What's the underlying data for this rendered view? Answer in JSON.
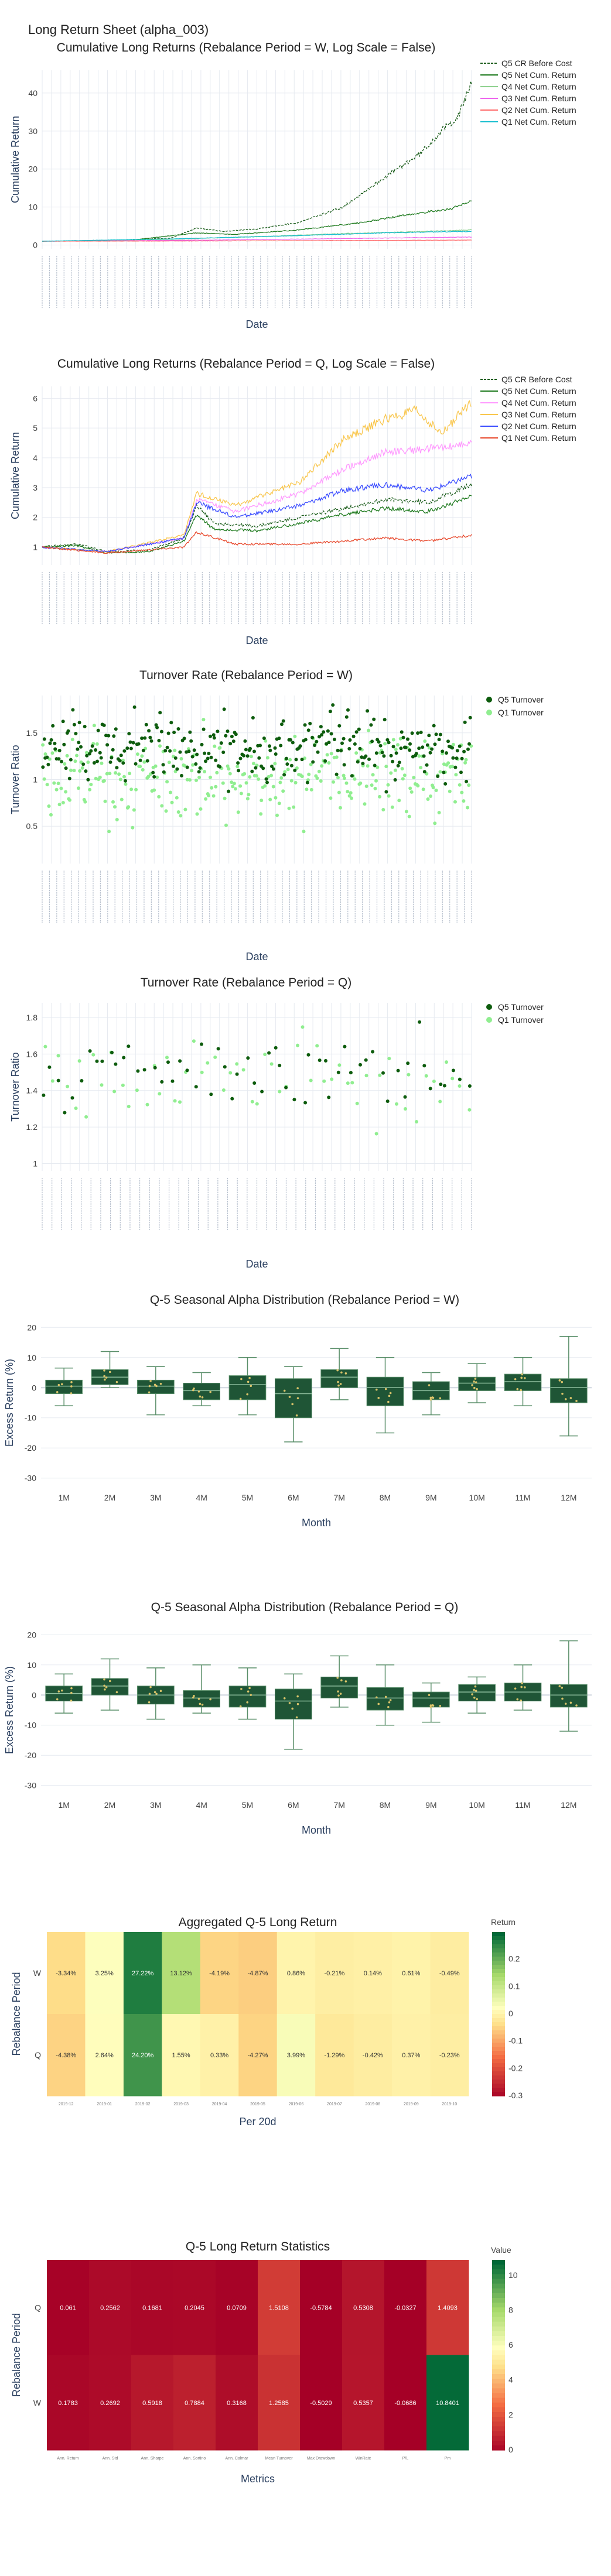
{
  "page": {
    "title": "Long Return Sheet (alpha_003)"
  },
  "chart_data": [
    {
      "id": "cum_w",
      "type": "line",
      "title": "Cumulative Long Returns (Rebalance Period = W, Log Scale = False)",
      "xlabel": "Date",
      "ylabel": "Cumulative Return",
      "ylim": [
        -1,
        46
      ],
      "yticks": [
        0,
        10,
        20,
        30,
        40
      ],
      "x_range": [
        "2016-08",
        "2023-03"
      ],
      "legend": "top-right",
      "series": [
        {
          "name": "Q5 CR Before Cost",
          "color": "#1a5c1a",
          "dash": true,
          "points": [
            [
              0,
              1
            ],
            [
              0.1,
              1.1
            ],
            [
              0.2,
              1.4
            ],
            [
              0.3,
              1.8
            ],
            [
              0.36,
              4.5
            ],
            [
              0.42,
              3.6
            ],
            [
              0.5,
              4.2
            ],
            [
              0.6,
              6
            ],
            [
              0.7,
              10
            ],
            [
              0.8,
              18
            ],
            [
              0.88,
              24
            ],
            [
              0.93,
              30
            ],
            [
              0.97,
              34
            ],
            [
              1,
              43
            ]
          ]
        },
        {
          "name": "Q5 Net Cum. Return",
          "color": "#1e7a1e",
          "points": [
            [
              0,
              1
            ],
            [
              0.2,
              1.2
            ],
            [
              0.36,
              3.2
            ],
            [
              0.45,
              2.8
            ],
            [
              0.6,
              4
            ],
            [
              0.75,
              6
            ],
            [
              0.85,
              8
            ],
            [
              0.95,
              9.5
            ],
            [
              1,
              11.5
            ]
          ]
        },
        {
          "name": "Q4 Net Cum. Return",
          "color": "#8fd18f",
          "points": [
            [
              0,
              1
            ],
            [
              0.3,
              1.5
            ],
            [
              0.5,
              2.2
            ],
            [
              0.7,
              3
            ],
            [
              0.9,
              3.6
            ],
            [
              1,
              4
            ]
          ]
        },
        {
          "name": "Q3 Net Cum. Return",
          "color": "#ee66ee",
          "points": [
            [
              0,
              1
            ],
            [
              0.4,
              1.3
            ],
            [
              0.7,
              1.7
            ],
            [
              1,
              2.1
            ]
          ]
        },
        {
          "name": "Q2 Net Cum. Return",
          "color": "#ff6b6b",
          "points": [
            [
              0,
              1
            ],
            [
              0.5,
              1.1
            ],
            [
              1,
              1.3
            ]
          ]
        },
        {
          "name": "Q1 Net Cum. Return",
          "color": "#17becf",
          "points": [
            [
              0,
              1
            ],
            [
              0.3,
              1.6
            ],
            [
              0.6,
              2.5
            ],
            [
              0.8,
              3.2
            ],
            [
              1,
              3.6
            ]
          ]
        }
      ]
    },
    {
      "id": "cum_q",
      "type": "line",
      "title": "Cumulative Long Returns (Rebalance Period = Q, Log Scale = False)",
      "xlabel": "Date",
      "ylabel": "Cumulative Return",
      "ylim": [
        0.4,
        6.4
      ],
      "yticks": [
        1,
        2,
        3,
        4,
        5,
        6
      ],
      "x_range": [
        "2016-08",
        "2023-03"
      ],
      "legend": "top-right",
      "series": [
        {
          "name": "Q5 CR Before Cost",
          "color": "#1a5c1a",
          "dash": true,
          "points": [
            [
              0,
              1
            ],
            [
              0.08,
              1.1
            ],
            [
              0.15,
              0.85
            ],
            [
              0.25,
              0.9
            ],
            [
              0.33,
              1.3
            ],
            [
              0.36,
              2.4
            ],
            [
              0.4,
              1.8
            ],
            [
              0.5,
              1.7
            ],
            [
              0.6,
              2
            ],
            [
              0.7,
              2.3
            ],
            [
              0.8,
              2.6
            ],
            [
              0.9,
              2.5
            ],
            [
              1,
              3.1
            ]
          ]
        },
        {
          "name": "Q5 Net Cum. Return",
          "color": "#1e7a1e",
          "points": [
            [
              0,
              1
            ],
            [
              0.08,
              1.05
            ],
            [
              0.15,
              0.8
            ],
            [
              0.25,
              0.85
            ],
            [
              0.33,
              1.2
            ],
            [
              0.36,
              2.1
            ],
            [
              0.4,
              1.6
            ],
            [
              0.5,
              1.55
            ],
            [
              0.6,
              1.8
            ],
            [
              0.7,
              2.1
            ],
            [
              0.8,
              2.3
            ],
            [
              0.9,
              2.2
            ],
            [
              1,
              2.7
            ]
          ]
        },
        {
          "name": "Q4 Net Cum. Return",
          "color": "#ff99ff",
          "points": [
            [
              0,
              1
            ],
            [
              0.15,
              0.85
            ],
            [
              0.33,
              1.3
            ],
            [
              0.36,
              2.6
            ],
            [
              0.45,
              2.2
            ],
            [
              0.6,
              2.8
            ],
            [
              0.7,
              3.6
            ],
            [
              0.8,
              4.2
            ],
            [
              0.9,
              4.3
            ],
            [
              1,
              4.5
            ]
          ]
        },
        {
          "name": "Q3 Net Cum. Return",
          "color": "#f9c74f",
          "points": [
            [
              0,
              1
            ],
            [
              0.15,
              0.85
            ],
            [
              0.33,
              1.4
            ],
            [
              0.36,
              2.8
            ],
            [
              0.45,
              2.4
            ],
            [
              0.6,
              3.2
            ],
            [
              0.7,
              4.6
            ],
            [
              0.8,
              5.3
            ],
            [
              0.87,
              5.6
            ],
            [
              0.93,
              4.8
            ],
            [
              1,
              5.9
            ]
          ]
        },
        {
          "name": "Q2 Net Cum. Return",
          "color": "#3a4cff",
          "points": [
            [
              0,
              1
            ],
            [
              0.15,
              0.85
            ],
            [
              0.33,
              1.3
            ],
            [
              0.36,
              2.5
            ],
            [
              0.45,
              2
            ],
            [
              0.6,
              2.4
            ],
            [
              0.7,
              2.9
            ],
            [
              0.8,
              3.1
            ],
            [
              0.9,
              2.9
            ],
            [
              1,
              3.4
            ]
          ]
        },
        {
          "name": "Q1 Net Cum. Return",
          "color": "#e84a2e",
          "points": [
            [
              0,
              1
            ],
            [
              0.15,
              0.8
            ],
            [
              0.33,
              1
            ],
            [
              0.36,
              1.5
            ],
            [
              0.45,
              1.1
            ],
            [
              0.6,
              1.1
            ],
            [
              0.7,
              1.2
            ],
            [
              0.8,
              1.3
            ],
            [
              0.9,
              1.2
            ],
            [
              1,
              1.4
            ]
          ]
        }
      ]
    },
    {
      "id": "turn_w",
      "type": "scatter",
      "title": "Turnover Rate (Rebalance Period = W)",
      "xlabel": "Date",
      "ylabel": "Turnover Ratio",
      "ylim": [
        0.1,
        1.9
      ],
      "yticks": [
        0.5,
        1,
        1.5
      ],
      "legend": "top-right",
      "series": [
        {
          "name": "Q5 Turnover",
          "color": "#0d5c0d",
          "count": 300,
          "center": 1.35,
          "spread": 0.28
        },
        {
          "name": "Q1 Turnover",
          "color": "#90ee90",
          "count": 300,
          "center": 1.0,
          "spread": 0.35
        }
      ]
    },
    {
      "id": "turn_q",
      "type": "scatter",
      "title": "Turnover Rate (Rebalance Period = Q)",
      "xlabel": "Date",
      "ylabel": "Turnover Ratio",
      "ylim": [
        0.96,
        1.88
      ],
      "yticks": [
        1,
        1.2,
        1.4,
        1.6,
        1.8
      ],
      "legend": "top-right",
      "series": [
        {
          "name": "Q5 Turnover",
          "color": "#0d5c0d",
          "count": 60,
          "center": 1.5,
          "spread": 0.15
        },
        {
          "name": "Q1 Turnover",
          "color": "#90ee90",
          "count": 60,
          "center": 1.45,
          "spread": 0.18
        }
      ]
    },
    {
      "id": "season_w",
      "type": "box",
      "title": "Q-5 Seasonal Alpha Distribution (Rebalance Period = W)",
      "xlabel": "Month",
      "ylabel": "Excess Return (%)",
      "ylim": [
        -32,
        22
      ],
      "yticks": [
        -30,
        -20,
        -10,
        0,
        10,
        20
      ],
      "categories": [
        "1M",
        "2M",
        "3M",
        "4M",
        "5M",
        "6M",
        "7M",
        "8M",
        "9M",
        "10M",
        "11M",
        "12M"
      ],
      "boxes": [
        {
          "min": -6,
          "q1": -2,
          "med": 0.5,
          "q3": 2.5,
          "max": 6.5
        },
        {
          "min": 0,
          "q1": 1,
          "med": 3.5,
          "q3": 6,
          "max": 12
        },
        {
          "min": -9,
          "q1": -2,
          "med": 0.5,
          "q3": 2.5,
          "max": 7
        },
        {
          "min": -6,
          "q1": -4,
          "med": -1,
          "q3": 1.5,
          "max": 5
        },
        {
          "min": -9,
          "q1": -4,
          "med": 1,
          "q3": 4,
          "max": 10
        },
        {
          "min": -18,
          "q1": -10,
          "med": -2,
          "q3": 3,
          "max": 7
        },
        {
          "min": -4,
          "q1": 0,
          "med": 3.5,
          "q3": 6,
          "max": 13
        },
        {
          "min": -15,
          "q1": -6,
          "med": 0,
          "q3": 3.5,
          "max": 10
        },
        {
          "min": -9,
          "q1": -4,
          "med": -1,
          "q3": 2,
          "max": 5
        },
        {
          "min": -5,
          "q1": -1,
          "med": 1.5,
          "q3": 3.5,
          "max": 8
        },
        {
          "min": -6,
          "q1": -1,
          "med": 2,
          "q3": 4.5,
          "max": 10
        },
        {
          "min": -16,
          "q1": -5,
          "med": 0,
          "q3": 3,
          "max": 17
        }
      ]
    },
    {
      "id": "season_q",
      "type": "box",
      "title": "Q-5 Seasonal Alpha Distribution (Rebalance Period = Q)",
      "xlabel": "Month",
      "ylabel": "Excess Return (%)",
      "ylim": [
        -32,
        22
      ],
      "yticks": [
        -30,
        -20,
        -10,
        0,
        10,
        20
      ],
      "categories": [
        "1M",
        "2M",
        "3M",
        "4M",
        "5M",
        "6M",
        "7M",
        "8M",
        "9M",
        "10M",
        "11M",
        "12M"
      ],
      "boxes": [
        {
          "min": -6,
          "q1": -2,
          "med": 0.5,
          "q3": 3,
          "max": 7
        },
        {
          "min": -5,
          "q1": 0,
          "med": 3,
          "q3": 5.5,
          "max": 12
        },
        {
          "min": -8,
          "q1": -3,
          "med": 0,
          "q3": 3,
          "max": 9
        },
        {
          "min": -6,
          "q1": -4,
          "med": -1,
          "q3": 1.5,
          "max": 10
        },
        {
          "min": -8,
          "q1": -4,
          "med": 0,
          "q3": 3,
          "max": 9
        },
        {
          "min": -18,
          "q1": -8,
          "med": -2,
          "q3": 2,
          "max": 7
        },
        {
          "min": -4,
          "q1": -1,
          "med": 3,
          "q3": 6,
          "max": 13
        },
        {
          "min": -10,
          "q1": -5,
          "med": -1,
          "q3": 2.5,
          "max": 10
        },
        {
          "min": -9,
          "q1": -4,
          "med": -1,
          "q3": 1,
          "max": 4
        },
        {
          "min": -6,
          "q1": -2,
          "med": 1,
          "q3": 3.5,
          "max": 6
        },
        {
          "min": -5,
          "q1": -2,
          "med": 1,
          "q3": 4,
          "max": 10
        },
        {
          "min": -12,
          "q1": -4,
          "med": 0,
          "q3": 3.5,
          "max": 18
        }
      ]
    },
    {
      "id": "agg_heat",
      "type": "heatmap",
      "title": "Aggregated Q-5 Long Return",
      "xlabel": "Per 20d",
      "ylabel": "Rebalance Period",
      "colorbar_title": "Return",
      "zmin": -0.3,
      "zmax": 0.3,
      "colorbar_ticks": [
        0.2,
        0.1,
        0,
        -0.1,
        -0.2,
        -0.3
      ],
      "rows": [
        "W",
        "Q"
      ],
      "cols": [
        "2019-12",
        "2019-01",
        "2019-02",
        "2019-03",
        "2019-04",
        "2019-05",
        "2019-06",
        "2019-07",
        "2019-08",
        "2019-09",
        "2019-10"
      ],
      "values": [
        [
          -0.0334,
          0.0325,
          0.2722,
          0.1312,
          -0.0419,
          -0.0487,
          0.0086,
          -0.0021,
          0.0014,
          0.0061,
          -0.0049
        ],
        [
          -0.0438,
          0.0264,
          0.242,
          0.0155,
          0.0033,
          -0.0427,
          0.0399,
          -0.0129,
          -0.0042,
          0.0037,
          -0.0023
        ]
      ],
      "labels": [
        [
          "-3.34%",
          "3.25%",
          "27.22%",
          "13.12%",
          "-4.19%",
          "-4.87%",
          "0.86%",
          "-0.21%",
          "0.14%",
          "0.61%",
          "-0.49%"
        ],
        [
          "-4.38%",
          "2.64%",
          "24.20%",
          "1.55%",
          "0.33%",
          "-4.27%",
          "3.99%",
          "-1.29%",
          "-0.42%",
          "0.37%",
          "-0.23%"
        ]
      ]
    },
    {
      "id": "stats_heat",
      "type": "heatmap",
      "title": "Q-5 Long Return Statistics",
      "xlabel": "Metrics",
      "ylabel": "Rebalance Period",
      "colorbar_title": "Value",
      "zmin": 0,
      "zmax": 10.9,
      "colorbar_ticks": [
        10,
        8,
        6,
        4,
        2,
        0
      ],
      "rows": [
        "Q",
        "W"
      ],
      "cols": [
        "Ann. Return",
        "Ann. Std",
        "Ann. Sharpe",
        "Ann. Sortino",
        "Ann. Calmar",
        "Mean Turnover",
        "Max Drawdown",
        "WinRate",
        "P/L",
        "Pm"
      ],
      "values": [
        [
          0.061,
          0.2562,
          0.1681,
          0.2045,
          0.0709,
          1.5108,
          -0.5784,
          0.5308,
          -0.0327,
          1.4093
        ],
        [
          0.1783,
          0.2692,
          0.5918,
          0.7884,
          0.3168,
          1.2585,
          -0.5029,
          0.5357,
          -0.0686,
          10.8401
        ]
      ],
      "labels": [
        [
          "0.061",
          "0.2562",
          "0.1681",
          "0.2045",
          "0.0709",
          "1.5108",
          "-0.5784",
          "0.5308",
          "-0.0327",
          "1.4093"
        ],
        [
          "0.1783",
          "0.2692",
          "0.5918",
          "0.7884",
          "0.3168",
          "1.2585",
          "-0.5029",
          "0.5357",
          "-0.0686",
          "10.8401"
        ]
      ]
    }
  ]
}
